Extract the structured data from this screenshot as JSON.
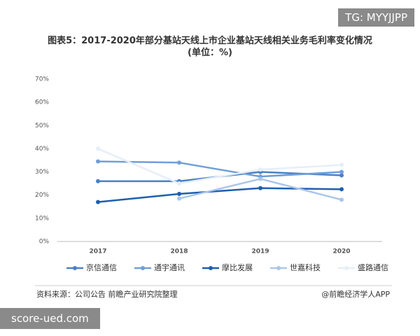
{
  "chart_data": {
    "type": "line",
    "title": "图表5：2017-2020年部分基站天线上市企业基站天线相关业务毛利率变化情况(单位：%)",
    "categories": [
      "2017",
      "2018",
      "2019",
      "2020"
    ],
    "series": [
      {
        "name": "京信通信",
        "color": "#4a80c4",
        "values": [
          26,
          26,
          30,
          28.5
        ]
      },
      {
        "name": "通宇通讯",
        "color": "#6f9fd8",
        "values": [
          34.5,
          34,
          28,
          30
        ]
      },
      {
        "name": "摩比发展",
        "color": "#1f5fae",
        "values": [
          17,
          20.5,
          23,
          22.5
        ]
      },
      {
        "name": "世嘉科技",
        "color": "#a9c6ea",
        "values": [
          null,
          18.5,
          27,
          18
        ]
      },
      {
        "name": "盛路通信",
        "color": "#e6eef8",
        "values": [
          40,
          25,
          31,
          33
        ]
      }
    ],
    "ylim": [
      0,
      70
    ],
    "yticks": [
      {
        "value": 0,
        "label": "0%"
      },
      {
        "value": 10,
        "label": "10%"
      },
      {
        "value": 20,
        "label": "20%"
      },
      {
        "value": 30,
        "label": "30%"
      },
      {
        "value": 40,
        "label": "40%"
      },
      {
        "value": 50,
        "label": "50%"
      },
      {
        "value": 60,
        "label": "60%"
      },
      {
        "value": 70,
        "label": "70%"
      }
    ],
    "source": "资料来源：公司公告 前瞻产业研究院整理",
    "credit": "@前瞻经济学人APP",
    "badge_top": "TG: MYYJJPP",
    "badge_bottom": "score-ued.com"
  }
}
